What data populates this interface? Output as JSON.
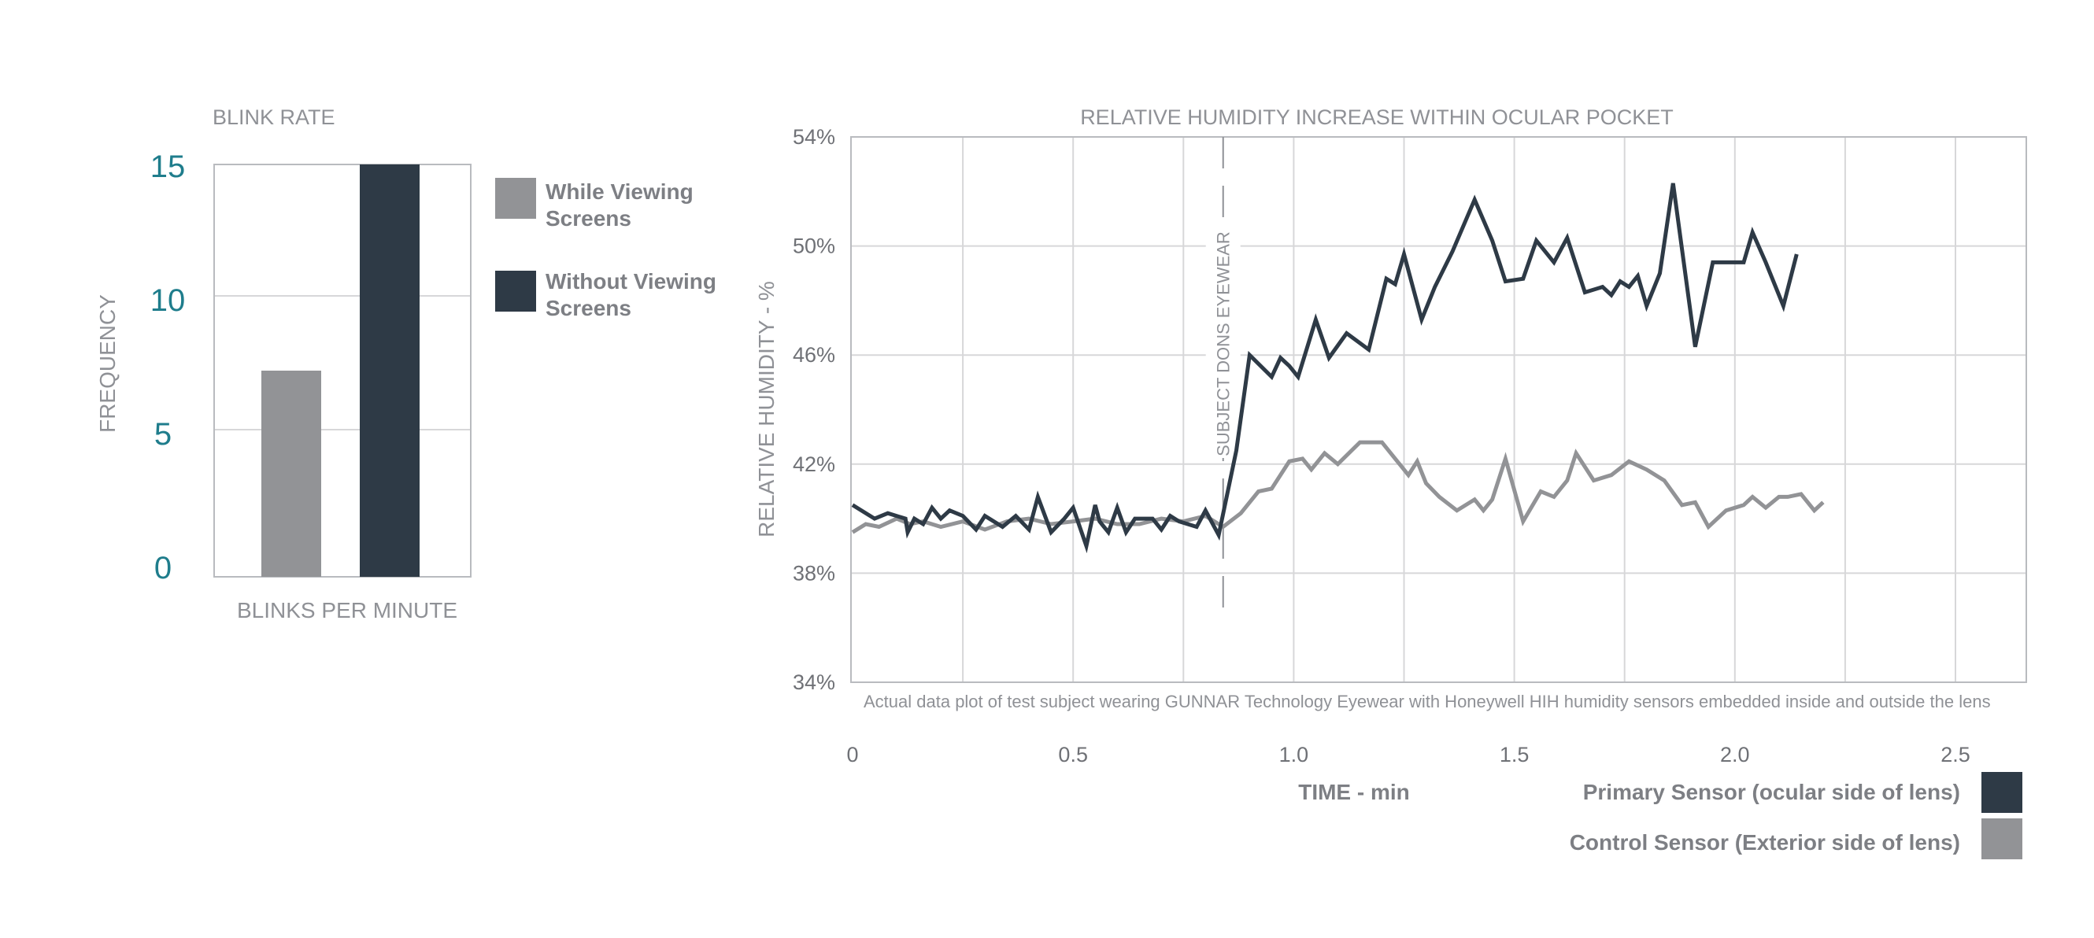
{
  "colors": {
    "dark_series": "#2e3a46",
    "gray_series": "#929396",
    "grid": "#d7d7d9",
    "axis_frame": "#b9bbbf",
    "label_gray": "#8f9196",
    "tick_teal": "#1f7d8c"
  },
  "chart_data": [
    {
      "type": "bar",
      "title": "BLINK RATE",
      "xlabel": "BLINKS PER MINUTE",
      "ylabel": "FREQUENCY",
      "ylim": [
        0,
        15
      ],
      "yticks": [
        "0",
        "5",
        "10",
        "15"
      ],
      "grid": true,
      "legend_position": "right",
      "series": [
        {
          "name": "While Viewing Screens",
          "value": 7.5,
          "color": "#929396"
        },
        {
          "name": "Without Viewing Screens",
          "value": 15,
          "color": "#2e3a46"
        }
      ],
      "legend": {
        "item0_line1": "While Viewing",
        "item0_line2": "Screens",
        "item1_line1": "Without Viewing",
        "item1_line2": "Screens"
      }
    },
    {
      "type": "line",
      "title": "RELATIVE HUMIDITY INCREASE WITHIN OCULAR POCKET",
      "xlabel": "TIME - min",
      "ylabel": "RELATIVE HUMIDITY - %",
      "xlim": [
        0,
        2.75
      ],
      "ylim": [
        34,
        54
      ],
      "xticks": [
        "0",
        "0.5",
        "1.0",
        "1.5",
        "2.0",
        "2.5"
      ],
      "yticks": [
        "34%",
        "38%",
        "42%",
        "46%",
        "50%",
        "54%"
      ],
      "grid": true,
      "legend_position": "bottom-right",
      "annotation": "SUBJECT DONS EYEWEAR",
      "annotation_x": 0.84,
      "caption": "Actual data plot of test subject wearing GUNNAR Technology Eyewear with Honeywell HIH humidity sensors embedded inside and outside the lens",
      "series": [
        {
          "name": "Primary Sensor (ocular side of lens)",
          "color": "#2e3a46",
          "x": [
            0.0,
            0.05,
            0.08,
            0.12,
            0.125,
            0.14,
            0.16,
            0.18,
            0.2,
            0.22,
            0.25,
            0.28,
            0.3,
            0.34,
            0.37,
            0.4,
            0.42,
            0.45,
            0.48,
            0.5,
            0.53,
            0.55,
            0.56,
            0.58,
            0.6,
            0.62,
            0.64,
            0.68,
            0.7,
            0.72,
            0.74,
            0.78,
            0.8,
            0.83,
            0.87,
            0.9,
            0.95,
            0.97,
            0.99,
            1.01,
            1.05,
            1.08,
            1.12,
            1.17,
            1.21,
            1.23,
            1.25,
            1.29,
            1.32,
            1.36,
            1.41,
            1.45,
            1.48,
            1.52,
            1.55,
            1.59,
            1.62,
            1.66,
            1.7,
            1.72,
            1.74,
            1.76,
            1.78,
            1.8,
            1.83,
            1.86,
            1.91,
            1.95,
            1.98,
            2.02,
            2.04,
            2.07,
            2.11,
            2.14
          ],
          "y": [
            40.5,
            40.0,
            40.2,
            40.0,
            39.5,
            40.0,
            39.8,
            40.4,
            40.0,
            40.3,
            40.1,
            39.6,
            40.1,
            39.7,
            40.1,
            39.6,
            40.8,
            39.5,
            40.0,
            40.4,
            39.0,
            40.5,
            39.9,
            39.5,
            40.4,
            39.5,
            40.0,
            40.0,
            39.6,
            40.1,
            39.9,
            39.7,
            40.3,
            39.4,
            42.5,
            46.0,
            45.2,
            45.9,
            45.6,
            45.2,
            47.3,
            45.9,
            46.8,
            46.2,
            48.8,
            48.6,
            49.7,
            47.3,
            48.5,
            49.8,
            51.7,
            50.2,
            48.7,
            48.8,
            50.2,
            49.4,
            50.3,
            48.3,
            48.5,
            48.2,
            48.7,
            48.5,
            48.9,
            47.8,
            49.0,
            52.3,
            46.3,
            49.4,
            49.4,
            49.4,
            50.5,
            49.4,
            47.8,
            49.7
          ]
        },
        {
          "name": "Control Sensor (Exterior side of lens)",
          "color": "#929396",
          "x": [
            0.0,
            0.03,
            0.06,
            0.1,
            0.13,
            0.16,
            0.2,
            0.25,
            0.3,
            0.35,
            0.4,
            0.45,
            0.5,
            0.55,
            0.6,
            0.65,
            0.7,
            0.75,
            0.8,
            0.84,
            0.88,
            0.92,
            0.95,
            0.99,
            1.02,
            1.04,
            1.07,
            1.1,
            1.15,
            1.2,
            1.23,
            1.26,
            1.28,
            1.3,
            1.33,
            1.37,
            1.41,
            1.43,
            1.45,
            1.48,
            1.52,
            1.56,
            1.59,
            1.62,
            1.64,
            1.68,
            1.72,
            1.76,
            1.8,
            1.84,
            1.88,
            1.91,
            1.94,
            1.98,
            2.02,
            2.04,
            2.07,
            2.1,
            2.12,
            2.15,
            2.18,
            2.2
          ],
          "y": [
            39.5,
            39.8,
            39.7,
            40.0,
            39.8,
            39.9,
            39.7,
            39.9,
            39.6,
            39.9,
            40.0,
            39.8,
            39.9,
            40.0,
            39.8,
            39.8,
            40.0,
            39.9,
            40.1,
            39.7,
            40.2,
            41.0,
            41.1,
            42.1,
            42.2,
            41.8,
            42.4,
            42.0,
            42.8,
            42.8,
            42.2,
            41.6,
            42.1,
            41.3,
            40.8,
            40.3,
            40.7,
            40.3,
            40.7,
            42.2,
            39.9,
            41.0,
            40.8,
            41.4,
            42.4,
            41.4,
            41.6,
            42.1,
            41.8,
            41.4,
            40.5,
            40.6,
            39.7,
            40.3,
            40.5,
            40.8,
            40.4,
            40.8,
            40.8,
            40.9,
            40.3,
            40.6
          ]
        }
      ]
    }
  ]
}
